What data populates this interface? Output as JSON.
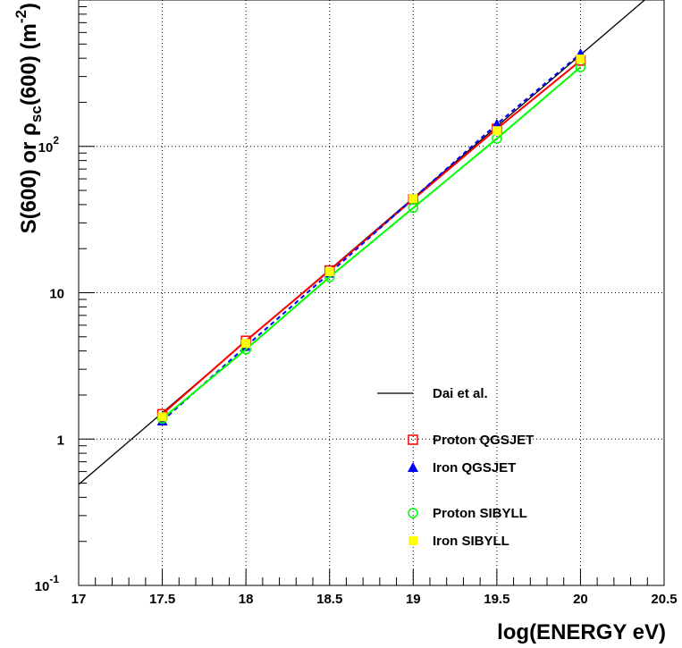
{
  "chart_data": {
    "type": "line",
    "xlabel": "log(ENERGY eV)",
    "ylabel": {
      "prefix": "S(600) or ",
      "rho": "ρ",
      "rho_sub": "sc",
      "middle": "(600) (m",
      "exp": "-2",
      "suffix": ")"
    },
    "xlim": [
      17,
      20.5
    ],
    "ylim": [
      0.1,
      1000
    ],
    "y_scale": "log",
    "grid": true,
    "x_ticks": [
      {
        "value": 17,
        "label": "17"
      },
      {
        "value": 17.5,
        "label": "17.5"
      },
      {
        "value": 18,
        "label": "18"
      },
      {
        "value": 18.5,
        "label": "18.5"
      },
      {
        "value": 19,
        "label": "19"
      },
      {
        "value": 19.5,
        "label": "19.5"
      },
      {
        "value": 20,
        "label": "20"
      },
      {
        "value": 20.5,
        "label": "20.5"
      }
    ],
    "y_ticks": [
      {
        "value": 0.1,
        "base": "10",
        "exp": "-1"
      },
      {
        "value": 1,
        "base": "1",
        "exp": ""
      },
      {
        "value": 10,
        "base": "10",
        "exp": ""
      },
      {
        "value": 100,
        "base": "10",
        "exp": "2"
      }
    ],
    "legend_position": "bottom-right",
    "series": [
      {
        "name": "Dai et al.",
        "type": "line",
        "color": "#000000",
        "dash": "solid",
        "x": [
          17.0,
          20.5
        ],
        "y": [
          0.49,
          1300
        ]
      },
      {
        "name": "Proton QGSJET",
        "type": "line-marker",
        "marker": "open-square",
        "color": "#ff0000",
        "dash": "solid",
        "x": [
          17.5,
          18,
          18.5,
          19,
          19.5,
          20
        ],
        "y": [
          1.48,
          4.7,
          14.2,
          43.5,
          132,
          385
        ]
      },
      {
        "name": "Iron QGSJET",
        "type": "line-marker",
        "marker": "filled-triangle",
        "color": "#0000ff",
        "dash": "dashed",
        "x": [
          17.5,
          18,
          18.5,
          19,
          19.5,
          20
        ],
        "y": [
          1.33,
          4.3,
          13.6,
          44,
          142,
          430
        ]
      },
      {
        "name": "Proton SIBYLL",
        "type": "line-marker",
        "marker": "open-circle",
        "color": "#00ff00",
        "dash": "solid",
        "x": [
          17.5,
          18,
          18.5,
          19,
          19.5,
          20
        ],
        "y": [
          1.38,
          4.1,
          12.8,
          38,
          113,
          348
        ]
      },
      {
        "name": "Iron SIBYLL",
        "type": "marker",
        "marker": "filled-square",
        "color": "#ffff00",
        "dash": "none",
        "x": [
          17.5,
          18,
          18.5,
          19,
          19.5,
          20
        ],
        "y": [
          1.42,
          4.5,
          13.9,
          44,
          128,
          395
        ]
      }
    ]
  }
}
